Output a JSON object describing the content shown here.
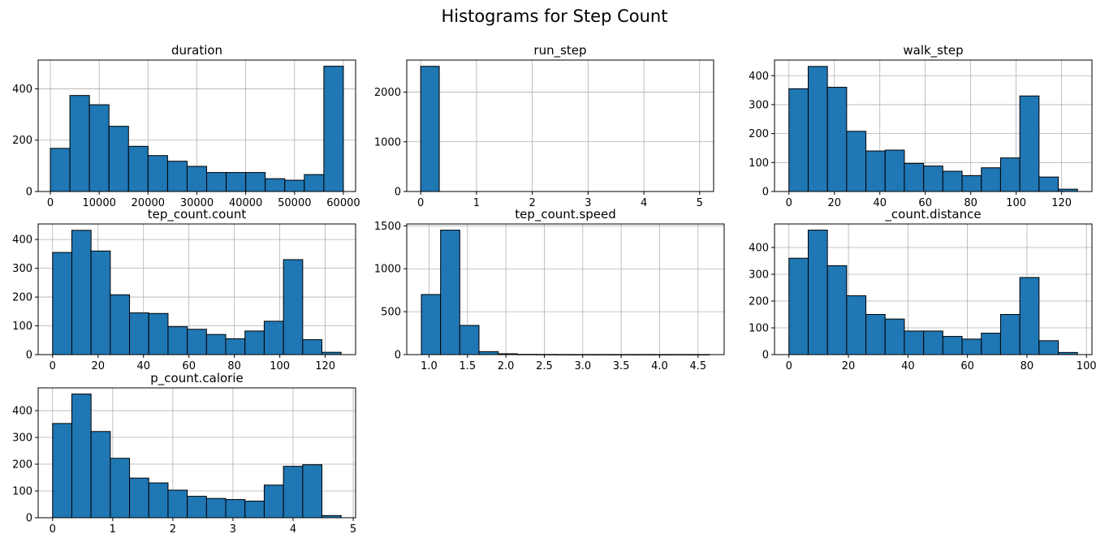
{
  "figure": {
    "title": "Histograms for Step Count"
  },
  "chart_data": [
    {
      "type": "bar",
      "title": "duration",
      "bins": [
        [
          0,
          4000
        ],
        [
          4000,
          8000
        ],
        [
          8000,
          12000
        ],
        [
          12000,
          16000
        ],
        [
          16000,
          20000
        ],
        [
          20000,
          24000
        ],
        [
          24000,
          28000
        ],
        [
          28000,
          32000
        ],
        [
          32000,
          36000
        ],
        [
          36000,
          40000
        ],
        [
          40000,
          44000
        ],
        [
          44000,
          48000
        ],
        [
          48000,
          52000
        ],
        [
          52000,
          56000
        ],
        [
          56000,
          60000
        ]
      ],
      "values": [
        168,
        374,
        338,
        254,
        176,
        140,
        118,
        98,
        74,
        74,
        74,
        50,
        44,
        66,
        488
      ],
      "xlim": [
        -2500,
        62500
      ],
      "ylim": [
        0,
        512
      ],
      "xticks": [
        0,
        10000,
        20000,
        30000,
        40000,
        50000,
        60000
      ],
      "xtick_labels": [
        "0",
        "10000",
        "20000",
        "30000",
        "40000",
        "50000",
        "60000"
      ],
      "yticks": [
        0,
        200,
        400
      ],
      "ytick_labels": [
        "0",
        "200",
        "400"
      ],
      "color": "#1f77b4"
    },
    {
      "type": "bar",
      "title": "run_step",
      "bins": [
        [
          0,
          0.333
        ],
        [
          0.333,
          0.667
        ],
        [
          0.667,
          1
        ],
        [
          1,
          1.333
        ],
        [
          1.333,
          1.667
        ],
        [
          1.667,
          2
        ],
        [
          2,
          2.333
        ],
        [
          2.333,
          2.667
        ],
        [
          2.667,
          3
        ],
        [
          3,
          3.333
        ],
        [
          3.333,
          3.667
        ],
        [
          3.667,
          4
        ],
        [
          4,
          4.333
        ],
        [
          4.333,
          4.667
        ],
        [
          4.667,
          5
        ]
      ],
      "values": [
        2520,
        0,
        0,
        0,
        0,
        0,
        0,
        0,
        0,
        0,
        0,
        0,
        0,
        0,
        0
      ],
      "xlim": [
        -0.25,
        5.25
      ],
      "ylim": [
        0,
        2646
      ],
      "xticks": [
        0,
        1,
        2,
        3,
        4,
        5
      ],
      "xtick_labels": [
        "0",
        "1",
        "2",
        "3",
        "4",
        "5"
      ],
      "yticks": [
        0,
        1000,
        2000
      ],
      "ytick_labels": [
        "0",
        "1000",
        "2000"
      ],
      "color": "#1f77b4"
    },
    {
      "type": "bar",
      "title": "walk_step",
      "bins": [
        [
          0,
          8.47
        ],
        [
          8.47,
          16.93
        ],
        [
          16.93,
          25.4
        ],
        [
          25.4,
          33.87
        ],
        [
          33.87,
          42.33
        ],
        [
          42.33,
          50.8
        ],
        [
          50.8,
          59.27
        ],
        [
          59.27,
          67.73
        ],
        [
          67.73,
          76.2
        ],
        [
          76.2,
          84.67
        ],
        [
          84.67,
          93.13
        ],
        [
          93.13,
          101.6
        ],
        [
          101.6,
          110.07
        ],
        [
          110.07,
          118.53
        ],
        [
          118.53,
          127
        ]
      ],
      "values": [
        355,
        432,
        360,
        208,
        140,
        143,
        97,
        88,
        70,
        55,
        82,
        116,
        330,
        50,
        8
      ],
      "xlim": [
        -6.35,
        133.35
      ],
      "ylim": [
        0,
        454
      ],
      "xticks": [
        0,
        20,
        40,
        60,
        80,
        100,
        120
      ],
      "xtick_labels": [
        "0",
        "20",
        "40",
        "60",
        "80",
        "100",
        "120"
      ],
      "yticks": [
        0,
        100,
        200,
        300,
        400
      ],
      "ytick_labels": [
        "0",
        "100",
        "200",
        "300",
        "400"
      ],
      "color": "#1f77b4"
    },
    {
      "type": "bar",
      "title": "tep_count.count",
      "bins": [
        [
          0,
          8.47
        ],
        [
          8.47,
          16.93
        ],
        [
          16.93,
          25.4
        ],
        [
          25.4,
          33.87
        ],
        [
          33.87,
          42.33
        ],
        [
          42.33,
          50.8
        ],
        [
          50.8,
          59.27
        ],
        [
          59.27,
          67.73
        ],
        [
          67.73,
          76.2
        ],
        [
          76.2,
          84.67
        ],
        [
          84.67,
          93.13
        ],
        [
          93.13,
          101.6
        ],
        [
          101.6,
          110.07
        ],
        [
          110.07,
          118.53
        ],
        [
          118.53,
          127
        ]
      ],
      "values": [
        355,
        432,
        360,
        208,
        145,
        143,
        97,
        88,
        70,
        55,
        82,
        116,
        330,
        52,
        8
      ],
      "xlim": [
        -6.35,
        133.35
      ],
      "ylim": [
        0,
        454
      ],
      "xticks": [
        0,
        20,
        40,
        60,
        80,
        100,
        120
      ],
      "xtick_labels": [
        "0",
        "20",
        "40",
        "60",
        "80",
        "100",
        "120"
      ],
      "yticks": [
        0,
        100,
        200,
        300,
        400
      ],
      "ytick_labels": [
        "0",
        "100",
        "200",
        "300",
        "400"
      ],
      "color": "#1f77b4"
    },
    {
      "type": "bar",
      "title": "tep_count.speed",
      "bins": [
        [
          0.9,
          1.15
        ],
        [
          1.15,
          1.4
        ],
        [
          1.4,
          1.65
        ],
        [
          1.65,
          1.9
        ],
        [
          1.9,
          2.15
        ],
        [
          2.15,
          2.4
        ],
        [
          2.4,
          2.65
        ],
        [
          2.65,
          2.9
        ],
        [
          2.9,
          3.15
        ],
        [
          3.15,
          3.4
        ],
        [
          3.4,
          3.65
        ],
        [
          3.65,
          3.9
        ],
        [
          3.9,
          4.15
        ],
        [
          4.15,
          4.4
        ],
        [
          4.4,
          4.65
        ]
      ],
      "values": [
        700,
        1450,
        340,
        35,
        10,
        3,
        2,
        1,
        1,
        1,
        1,
        1,
        1,
        1,
        1
      ],
      "xlim": [
        0.71,
        4.84
      ],
      "ylim": [
        0,
        1522
      ],
      "xticks": [
        1.0,
        1.5,
        2.0,
        2.5,
        3.0,
        3.5,
        4.0,
        4.5
      ],
      "xtick_labels": [
        "1.0",
        "1.5",
        "2.0",
        "2.5",
        "3.0",
        "3.5",
        "4.0",
        "4.5"
      ],
      "yticks": [
        0,
        500,
        1000,
        1500
      ],
      "ytick_labels": [
        "0",
        "500",
        "1000",
        "1500"
      ],
      "color": "#1f77b4"
    },
    {
      "type": "bar",
      "title": "_count.distance",
      "bins": [
        [
          0,
          6.47
        ],
        [
          6.47,
          12.93
        ],
        [
          12.93,
          19.4
        ],
        [
          19.4,
          25.87
        ],
        [
          25.87,
          32.33
        ],
        [
          32.33,
          38.8
        ],
        [
          38.8,
          45.27
        ],
        [
          45.27,
          51.73
        ],
        [
          51.73,
          58.2
        ],
        [
          58.2,
          64.67
        ],
        [
          64.67,
          71.13
        ],
        [
          71.13,
          77.6
        ],
        [
          77.6,
          84.07
        ],
        [
          84.07,
          90.53
        ],
        [
          90.53,
          97
        ]
      ],
      "values": [
        360,
        465,
        332,
        220,
        150,
        133,
        88,
        88,
        68,
        58,
        80,
        150,
        288,
        52,
        8
      ],
      "xlim": [
        -4.85,
        101.85
      ],
      "ylim": [
        0,
        488
      ],
      "xticks": [
        0,
        20,
        40,
        60,
        80,
        100
      ],
      "xtick_labels": [
        "0",
        "20",
        "40",
        "60",
        "80",
        "100"
      ],
      "yticks": [
        0,
        100,
        200,
        300,
        400
      ],
      "ytick_labels": [
        "0",
        "100",
        "200",
        "300",
        "400"
      ],
      "color": "#1f77b4"
    },
    {
      "type": "bar",
      "title": "p_count.calorie",
      "bins": [
        [
          0,
          0.32
        ],
        [
          0.32,
          0.64
        ],
        [
          0.64,
          0.96
        ],
        [
          0.96,
          1.28
        ],
        [
          1.28,
          1.6
        ],
        [
          1.6,
          1.92
        ],
        [
          1.92,
          2.24
        ],
        [
          2.24,
          2.56
        ],
        [
          2.56,
          2.88
        ],
        [
          2.88,
          3.2
        ],
        [
          3.2,
          3.52
        ],
        [
          3.52,
          3.84
        ],
        [
          3.84,
          4.16
        ],
        [
          4.16,
          4.48
        ],
        [
          4.48,
          4.8
        ]
      ],
      "values": [
        352,
        462,
        322,
        222,
        148,
        130,
        103,
        80,
        72,
        68,
        62,
        122,
        192,
        198,
        8
      ],
      "xlim": [
        -0.24,
        5.04
      ],
      "ylim": [
        0,
        485
      ],
      "xticks": [
        0,
        1,
        2,
        3,
        4,
        5
      ],
      "xtick_labels": [
        "0",
        "1",
        "2",
        "3",
        "4",
        "5"
      ],
      "yticks": [
        0,
        100,
        200,
        300,
        400
      ],
      "ytick_labels": [
        "0",
        "100",
        "200",
        "300",
        "400"
      ],
      "color": "#1f77b4"
    }
  ]
}
